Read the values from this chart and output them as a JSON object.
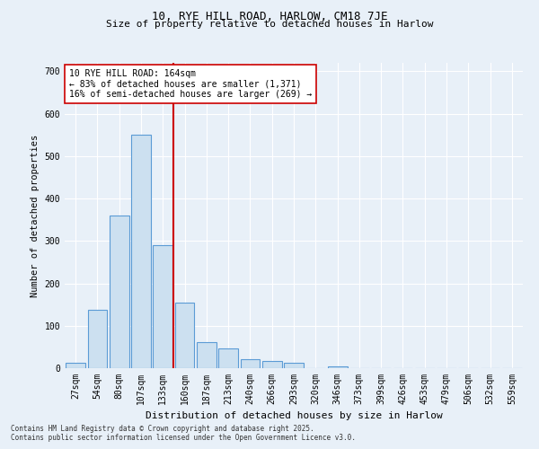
{
  "title1": "10, RYE HILL ROAD, HARLOW, CM18 7JE",
  "title2": "Size of property relative to detached houses in Harlow",
  "xlabel": "Distribution of detached houses by size in Harlow",
  "ylabel": "Number of detached properties",
  "categories": [
    "27sqm",
    "54sqm",
    "80sqm",
    "107sqm",
    "133sqm",
    "160sqm",
    "187sqm",
    "213sqm",
    "240sqm",
    "266sqm",
    "293sqm",
    "320sqm",
    "346sqm",
    "373sqm",
    "399sqm",
    "426sqm",
    "453sqm",
    "479sqm",
    "506sqm",
    "532sqm",
    "559sqm"
  ],
  "values": [
    12,
    138,
    360,
    550,
    290,
    155,
    62,
    46,
    22,
    16,
    12,
    0,
    5,
    0,
    0,
    0,
    0,
    0,
    0,
    0,
    0
  ],
  "bar_color": "#cce0f0",
  "bar_edge_color": "#5b9bd5",
  "property_line_x": 4.5,
  "line_color": "#cc0000",
  "annotation_text": "10 RYE HILL ROAD: 164sqm\n← 83% of detached houses are smaller (1,371)\n16% of semi-detached houses are larger (269) →",
  "annotation_box_color": "#ffffff",
  "annotation_box_edge": "#cc0000",
  "footer1": "Contains HM Land Registry data © Crown copyright and database right 2025.",
  "footer2": "Contains public sector information licensed under the Open Government Licence v3.0.",
  "bg_color": "#e8f0f8",
  "ylim": [
    0,
    720
  ],
  "yticks": [
    0,
    100,
    200,
    300,
    400,
    500,
    600,
    700
  ],
  "title1_fontsize": 9,
  "title2_fontsize": 8,
  "ylabel_fontsize": 7.5,
  "xlabel_fontsize": 8,
  "tick_fontsize": 7,
  "ann_fontsize": 7,
  "footer_fontsize": 5.5
}
